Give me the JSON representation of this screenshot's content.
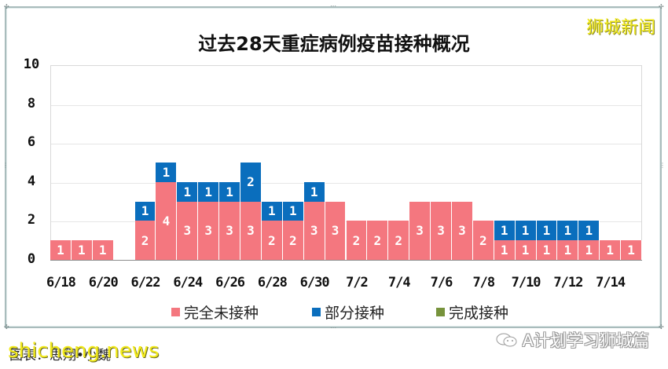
{
  "header": {
    "title": "过去28天重症病例疫苗接种概况",
    "brand": "狮城新闻"
  },
  "footer": {
    "credit": "图表：思翔•小魏",
    "watermark": "shicheng.news",
    "source": "A计划学习狮城篇"
  },
  "colors": {
    "unvaccinated": "#f4777f",
    "partial": "#0a6ebd",
    "full": "#77933c"
  },
  "chart_data": {
    "type": "bar",
    "stacked": true,
    "title": "过去28天重症病例疫苗接种概况",
    "xlabel": "",
    "ylabel": "",
    "ylim": [
      0,
      10
    ],
    "yticks": [
      0,
      2,
      4,
      6,
      8,
      10
    ],
    "grid": true,
    "legend_position": "bottom",
    "categories": [
      "6/18",
      "6/19",
      "6/20",
      "6/21",
      "6/22",
      "6/23",
      "6/24",
      "6/25",
      "6/26",
      "6/27",
      "6/28",
      "6/29",
      "6/30",
      "7/1",
      "7/2",
      "7/3",
      "7/4",
      "7/5",
      "7/6",
      "7/7",
      "7/8",
      "7/9",
      "7/10",
      "7/11",
      "7/12",
      "7/13",
      "7/14",
      "7/15"
    ],
    "xtick_labels": [
      "6/18",
      "6/20",
      "6/22",
      "6/24",
      "6/26",
      "6/28",
      "6/30",
      "7/2",
      "7/4",
      "7/6",
      "7/8",
      "7/10",
      "7/12",
      "7/14"
    ],
    "series": [
      {
        "name": "完全未接种",
        "color": "#f4777f",
        "values": [
          1,
          1,
          1,
          0,
          2,
          4,
          3,
          3,
          3,
          3,
          2,
          2,
          3,
          3,
          2,
          2,
          2,
          3,
          3,
          3,
          2,
          1,
          1,
          1,
          1,
          1,
          1,
          1
        ]
      },
      {
        "name": "部分接种",
        "color": "#0a6ebd",
        "values": [
          0,
          0,
          0,
          0,
          1,
          1,
          1,
          1,
          1,
          2,
          1,
          1,
          1,
          0,
          0,
          0,
          0,
          0,
          0,
          0,
          0,
          1,
          1,
          1,
          1,
          1,
          0,
          0
        ]
      },
      {
        "name": "完成接种",
        "color": "#77933c",
        "values": [
          0,
          0,
          0,
          0,
          0,
          0,
          0,
          0,
          0,
          0,
          0,
          0,
          0,
          0,
          0,
          0,
          0,
          0,
          0,
          0,
          0,
          0,
          0,
          0,
          0,
          0,
          0,
          0
        ]
      }
    ]
  }
}
